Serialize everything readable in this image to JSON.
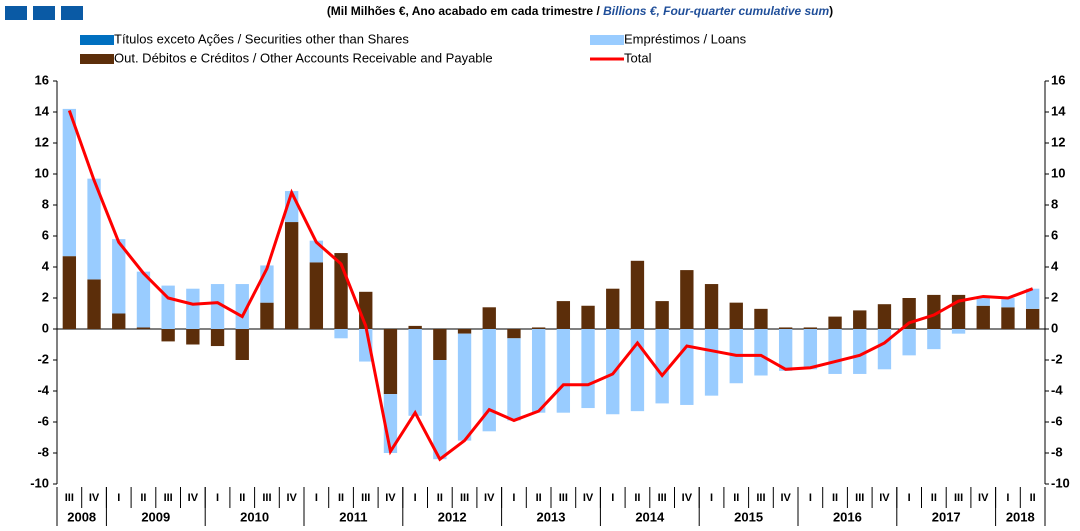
{
  "chart_data": {
    "type": "bar-line",
    "title_parts": [
      "(Mil Milhões €, Ano acabado em cada trimestre / ",
      "Billions €, Four-quarter cumulative sum",
      ")"
    ],
    "categories": [
      "III",
      "IV",
      "I",
      "II",
      "III",
      "IV",
      "I",
      "II",
      "III",
      "IV",
      "I",
      "II",
      "III",
      "IV",
      "I",
      "II",
      "III",
      "IV",
      "I",
      "II",
      "III",
      "IV",
      "I",
      "II",
      "III",
      "IV",
      "I",
      "II",
      "III",
      "IV",
      "I",
      "II",
      "III",
      "IV",
      "I",
      "II",
      "III",
      "IV",
      "I",
      "II"
    ],
    "years": [
      "2008",
      "2009",
      "2010",
      "2011",
      "2012",
      "2013",
      "2014",
      "2015",
      "2016",
      "2017",
      "2018"
    ],
    "series": [
      {
        "name": "Out. Débitos e Créditos / Other Accounts Receivable and Payable",
        "color": "#5c2e0a",
        "kind": "bar",
        "values": [
          4.7,
          3.2,
          1.0,
          0.1,
          -0.8,
          -1.0,
          -1.1,
          -2.0,
          1.7,
          6.9,
          4.3,
          4.9,
          2.4,
          -4.2,
          0.2,
          -2.0,
          -0.3,
          1.4,
          -0.6,
          0.1,
          1.8,
          1.5,
          2.6,
          4.4,
          1.8,
          3.8,
          2.9,
          1.7,
          1.3,
          0.1,
          0.1,
          0.8,
          1.2,
          1.6,
          2.0,
          2.2,
          2.2,
          1.5,
          1.4,
          1.3
        ]
      },
      {
        "name": "Empréstimos / Loans",
        "color": "#99ccff",
        "kind": "bar",
        "values": [
          9.5,
          6.5,
          4.8,
          3.6,
          2.8,
          2.6,
          2.9,
          2.9,
          2.4,
          2.0,
          1.4,
          -0.6,
          -2.1,
          -3.8,
          -5.6,
          -6.4,
          -6.9,
          -6.6,
          -5.3,
          -5.4,
          -5.4,
          -5.1,
          -5.5,
          -5.3,
          -4.8,
          -4.9,
          -4.3,
          -3.5,
          -3.0,
          -2.7,
          -2.6,
          -2.9,
          -2.9,
          -2.6,
          -1.7,
          -1.3,
          -0.3,
          0.6,
          0.6,
          1.3
        ]
      },
      {
        "name": "Títulos exceto Ações / Securities other than Shares",
        "color": "#0070c0",
        "kind": "bar",
        "values": [
          0,
          0,
          0,
          0,
          0,
          0,
          0,
          0,
          0,
          0,
          0,
          0,
          0,
          0,
          0,
          0,
          0,
          0,
          0,
          0,
          0,
          0,
          0,
          0,
          0,
          0,
          0,
          0,
          0,
          0,
          0,
          0,
          0,
          0,
          0,
          0,
          0,
          0,
          0,
          0
        ]
      },
      {
        "name": "Total",
        "color": "#ff0000",
        "kind": "line",
        "values": [
          14.1,
          9.6,
          5.6,
          3.6,
          2.0,
          1.6,
          1.7,
          0.8,
          3.9,
          8.8,
          5.6,
          4.2,
          0.2,
          -7.9,
          -5.4,
          -8.4,
          -7.2,
          -5.2,
          -5.9,
          -5.3,
          -3.6,
          -3.6,
          -2.9,
          -0.9,
          -3.0,
          -1.1,
          -1.4,
          -1.7,
          -1.7,
          -2.6,
          -2.5,
          -2.1,
          -1.7,
          -0.9,
          0.4,
          0.9,
          1.8,
          2.1,
          2.0,
          2.6
        ]
      }
    ],
    "legend_order": [
      2,
      1,
      0,
      3
    ],
    "ylim": [
      -10,
      16
    ],
    "yticks": [
      -10,
      -8,
      -6,
      -4,
      -2,
      0,
      2,
      4,
      6,
      8,
      10,
      12,
      14,
      16
    ]
  }
}
